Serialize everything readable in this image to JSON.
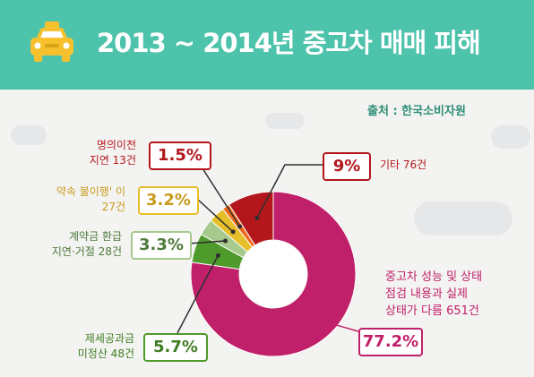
{
  "title": "2013 ~ 2014년 중고차 매매 피해",
  "source": "출처 : 한국소비자원",
  "icons": {
    "header": "taxi-icon"
  },
  "chart_data": {
    "type": "pie",
    "donut": true,
    "title": "2013 ~ 2014년 중고차 매매 피해",
    "slices": [
      {
        "label": [
          "중고차 성능 및 상태",
          "점검 내용과 실제",
          "상태가 다름 651건"
        ],
        "percent": "77.2%",
        "value": 77.2,
        "count": 651,
        "color": "#c0206a"
      },
      {
        "label": [
          "제세공과금",
          "미정산 48건"
        ],
        "percent": "5.7%",
        "value": 5.7,
        "count": 48,
        "color": "#4e9a2a"
      },
      {
        "label": [
          "계약금 환급",
          "지연·거절 28건"
        ],
        "percent": "3.3%",
        "value": 3.3,
        "count": 28,
        "color": "#a6c98d"
      },
      {
        "label": [
          "약속 불이행' 이",
          "27건"
        ],
        "percent": "3.2%",
        "value": 3.2,
        "count": 27,
        "color": "#e6be2a"
      },
      {
        "label": [
          "명의이전",
          "지연 13건"
        ],
        "percent": "1.5%",
        "value": 1.5,
        "count": 13,
        "color": "#ee6a1e"
      },
      {
        "label": [
          "기타 76건"
        ],
        "percent": "9%",
        "value": 9,
        "count": 76,
        "color": "#b3171c"
      }
    ]
  }
}
